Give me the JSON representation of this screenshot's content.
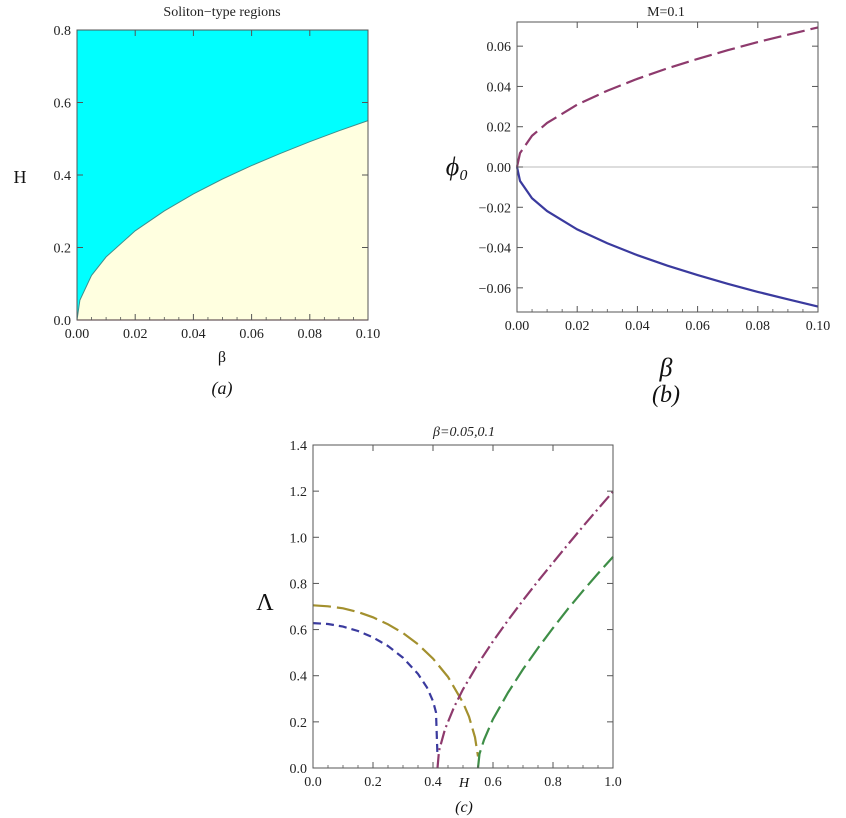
{
  "chart_data": [
    {
      "panel": "a",
      "type": "area",
      "title": "Soliton−type regions",
      "xlabel": "β",
      "ylabel": "H",
      "caption": "(a)",
      "xlim": [
        0,
        0.1
      ],
      "ylim": [
        0,
        0.8
      ],
      "xticks": [
        "0.00",
        "0.02",
        "0.04",
        "0.06",
        "0.08",
        "0.10"
      ],
      "yticks": [
        "0.0",
        "0.2",
        "0.4",
        "0.6",
        "0.8"
      ],
      "boundary": {
        "x": [
          0,
          0.001,
          0.005,
          0.01,
          0.02,
          0.03,
          0.04,
          0.05,
          0.06,
          0.07,
          0.08,
          0.09,
          0.1
        ],
        "y": [
          0,
          0.055,
          0.123,
          0.174,
          0.246,
          0.301,
          0.348,
          0.389,
          0.426,
          0.46,
          0.492,
          0.522,
          0.55
        ]
      },
      "regions": [
        {
          "color": "#00ffff",
          "where": "above"
        },
        {
          "color": "#ffffe0",
          "where": "below"
        }
      ],
      "grid": false
    },
    {
      "panel": "b",
      "type": "line",
      "title": "M=0.1",
      "xlabel": "β",
      "ylabel": "ϕ₀",
      "caption": "(b)",
      "xlim": [
        0,
        0.1
      ],
      "ylim": [
        -0.072,
        0.072
      ],
      "xticks": [
        "0.00",
        "0.02",
        "0.04",
        "0.06",
        "0.08",
        "0.10"
      ],
      "yticks": [
        "0.06",
        "0.04",
        "0.02",
        "0.00",
        "−0.02",
        "−0.04",
        "−0.06"
      ],
      "series": [
        {
          "color": "#8e3a6d",
          "dash": "long-dash",
          "x": [
            0,
            0.001,
            0.005,
            0.01,
            0.02,
            0.03,
            0.04,
            0.05,
            0.06,
            0.07,
            0.08,
            0.09,
            0.1
          ],
          "y": [
            0,
            0.0069,
            0.0155,
            0.0219,
            0.031,
            0.0379,
            0.0438,
            0.049,
            0.0537,
            0.058,
            0.062,
            0.0657,
            0.0693
          ]
        },
        {
          "color": "#3a3a9e",
          "dash": "solid",
          "x": [
            0,
            0.001,
            0.005,
            0.01,
            0.02,
            0.03,
            0.04,
            0.05,
            0.06,
            0.07,
            0.08,
            0.09,
            0.1
          ],
          "y": [
            0,
            -0.0069,
            -0.0155,
            -0.0219,
            -0.031,
            -0.0379,
            -0.0438,
            -0.049,
            -0.0537,
            -0.058,
            -0.062,
            -0.0657,
            -0.0693
          ]
        }
      ],
      "grid": false
    },
    {
      "panel": "c",
      "type": "line",
      "title": "β=0.05,0.1",
      "xlabel": "H",
      "ylabel": "Λ",
      "caption": "(c)",
      "xlim": [
        0,
        1
      ],
      "ylim": [
        0,
        1.4
      ],
      "xticks": [
        "0.0",
        "0.2",
        "0.4",
        "0.6",
        "0.8",
        "1.0"
      ],
      "yticks": [
        "0.0",
        "0.2",
        "0.4",
        "0.6",
        "0.8",
        "1.0",
        "1.2",
        "1.4"
      ],
      "series": [
        {
          "color": "#3a3a9e",
          "dash": "short-dash",
          "x": [
            0,
            0.05,
            0.1,
            0.15,
            0.2,
            0.25,
            0.3,
            0.35,
            0.38,
            0.4,
            0.41,
            0.415
          ],
          "y": [
            0.628,
            0.624,
            0.613,
            0.594,
            0.566,
            0.529,
            0.478,
            0.408,
            0.349,
            0.29,
            0.241,
            0.05
          ]
        },
        {
          "color": "#a3902e",
          "dash": "long-dash",
          "x": [
            0,
            0.05,
            0.1,
            0.15,
            0.2,
            0.25,
            0.3,
            0.35,
            0.4,
            0.45,
            0.5,
            0.52,
            0.54,
            0.55
          ],
          "y": [
            0.705,
            0.701,
            0.692,
            0.676,
            0.653,
            0.623,
            0.585,
            0.536,
            0.474,
            0.395,
            0.283,
            0.223,
            0.133,
            0.05
          ]
        },
        {
          "color": "#8e3a6d",
          "dash": "dash-dot",
          "x": [
            0.415,
            0.42,
            0.44,
            0.47,
            0.5,
            0.55,
            0.6,
            0.65,
            0.7,
            0.75,
            0.8,
            0.85,
            0.9,
            0.95,
            1.0
          ],
          "y": [
            0.0,
            0.074,
            0.168,
            0.263,
            0.341,
            0.451,
            0.549,
            0.64,
            0.727,
            0.81,
            0.89,
            0.969,
            1.047,
            1.123,
            1.198
          ]
        },
        {
          "color": "#3e8e47",
          "dash": "long-dash",
          "x": [
            0.55,
            0.555,
            0.57,
            0.6,
            0.65,
            0.7,
            0.75,
            0.8,
            0.85,
            0.9,
            0.95,
            1.0
          ],
          "y": [
            0.0,
            0.061,
            0.122,
            0.212,
            0.327,
            0.428,
            0.52,
            0.607,
            0.69,
            0.768,
            0.843,
            0.915
          ]
        }
      ],
      "grid": false
    }
  ]
}
